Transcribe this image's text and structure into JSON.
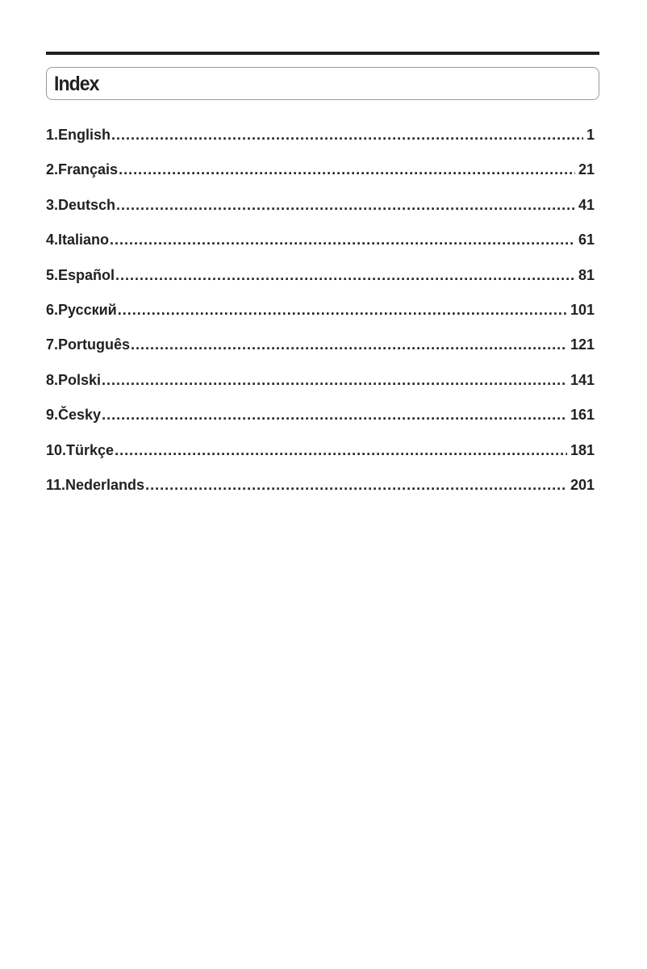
{
  "title": "Index",
  "entries": [
    {
      "label": "1.English",
      "page": "1"
    },
    {
      "label": "2.Français",
      "page": "21"
    },
    {
      "label": "3.Deutsch",
      "page": "41"
    },
    {
      "label": "4.Italiano",
      "page": "61"
    },
    {
      "label": "5.Español",
      "page": "81"
    },
    {
      "label": "6.Русский",
      "page": "101"
    },
    {
      "label": "7.Português",
      "page": "121"
    },
    {
      "label": "8.Polski",
      "page": "141"
    },
    {
      "label": "9.Česky",
      "page": "161"
    },
    {
      "label": "10.Türkçe",
      "page": "181"
    },
    {
      "label": "11.Nederlands",
      "page": "201"
    }
  ]
}
